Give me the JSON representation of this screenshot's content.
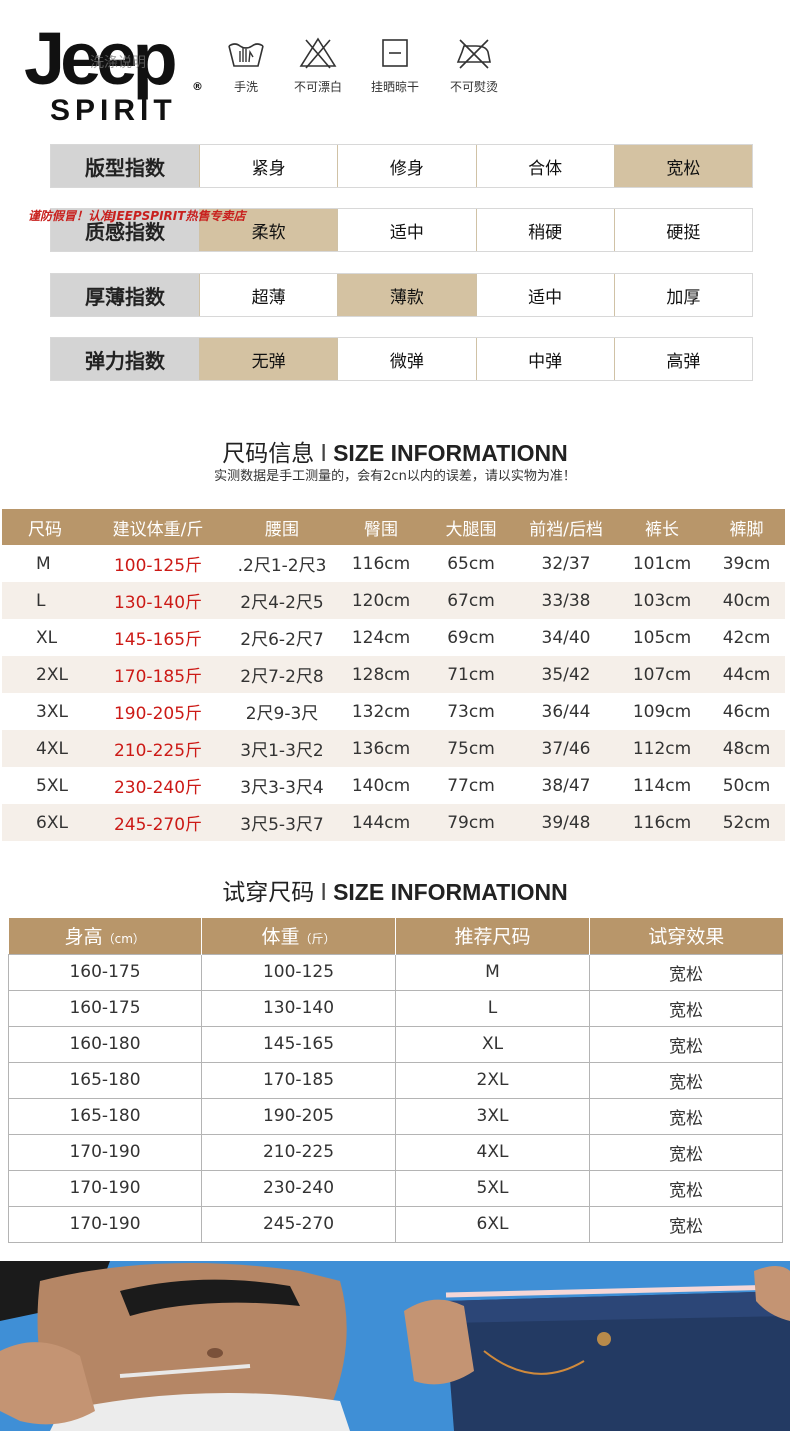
{
  "brand": {
    "name": "Jeep",
    "registered": "®",
    "sub": "SPIRIT",
    "care_title": "洗涤说明"
  },
  "care_icons": [
    {
      "icon": "hand-wash-icon",
      "label": "手洗"
    },
    {
      "icon": "no-bleach-icon",
      "label": "不可漂白"
    },
    {
      "icon": "hang-dry-icon",
      "label": "挂晒晾干"
    },
    {
      "icon": "no-iron-icon",
      "label": "不可熨烫"
    }
  ],
  "warning": "谨防假冒！认准JEEPSPIRIT热售专卖店",
  "indices": [
    {
      "title": "版型指数",
      "options": [
        "紧身",
        "修身",
        "合体",
        "宽松"
      ],
      "active": 3
    },
    {
      "title": "质感指数",
      "options": [
        "柔软",
        "适中",
        "稍硬",
        "硬挺"
      ],
      "active": 0
    },
    {
      "title": "厚薄指数",
      "options": [
        "超薄",
        "薄款",
        "适中",
        "加厚"
      ],
      "active": 1
    },
    {
      "title": "弹力指数",
      "options": [
        "无弹",
        "微弹",
        "中弹",
        "高弹"
      ],
      "active": 0
    }
  ],
  "size_section": {
    "title_cn": "尺码信息",
    "sep": "I",
    "title_en": "SIZE INFORMATIONN",
    "subtitle": "实测数据是手工测量的，会有2cn以内的误差，请以实物为准！"
  },
  "size_table": {
    "headers": [
      "尺码",
      "建议体重/斤",
      "腰围",
      "臀围",
      "大腿围",
      "前裆/后档",
      "裤长",
      "裤脚"
    ],
    "rows": [
      [
        "M",
        "100-125斤",
        ".2尺1-2尺3",
        "116cm",
        "65cm",
        "32/37",
        "101cm",
        "39cm"
      ],
      [
        "L",
        "130-140斤",
        "2尺4-2尺5",
        "120cm",
        "67cm",
        "33/38",
        "103cm",
        "40cm"
      ],
      [
        "XL",
        "145-165斤",
        "2尺6-2尺7",
        "124cm",
        "69cm",
        "34/40",
        "105cm",
        "42cm"
      ],
      [
        "2XL",
        "170-185斤",
        "2尺7-2尺8",
        "128cm",
        "71cm",
        "35/42",
        "107cm",
        "44cm"
      ],
      [
        "3XL",
        "190-205斤",
        "2尺9-3尺",
        "132cm",
        "73cm",
        "36/44",
        "109cm",
        "46cm"
      ],
      [
        "4XL",
        "210-225斤",
        "3尺1-3尺2",
        "136cm",
        "75cm",
        "37/46",
        "112cm",
        "48cm"
      ],
      [
        "5XL",
        "230-240斤",
        "3尺3-3尺4",
        "140cm",
        "77cm",
        "38/47",
        "114cm",
        "50cm"
      ],
      [
        "6XL",
        "245-270斤",
        "3尺5-3尺7",
        "144cm",
        "79cm",
        "39/48",
        "116cm",
        "52cm"
      ]
    ]
  },
  "fit_section": {
    "title_cn": "试穿尺码",
    "sep": "I",
    "title_en": "SIZE INFORMATIONN"
  },
  "fit_table": {
    "headers": [
      {
        "label": "身高",
        "unit": "（cm）"
      },
      {
        "label": "体重",
        "unit": "（斤）"
      },
      {
        "label": "推荐尺码",
        "unit": ""
      },
      {
        "label": "试穿效果",
        "unit": ""
      }
    ],
    "rows": [
      [
        "160-175",
        "100-125",
        "M",
        "宽松"
      ],
      [
        "160-175",
        "130-140",
        "L",
        "宽松"
      ],
      [
        "160-180",
        "145-165",
        "XL",
        "宽松"
      ],
      [
        "165-180",
        "170-185",
        "2XL",
        "宽松"
      ],
      [
        "165-180",
        "190-205",
        "3XL",
        "宽松"
      ],
      [
        "170-190",
        "210-225",
        "4XL",
        "宽松"
      ],
      [
        "170-190",
        "230-240",
        "5XL",
        "宽松"
      ],
      [
        "170-190",
        "245-270",
        "6XL",
        "宽松"
      ]
    ]
  },
  "colors": {
    "accent": "#b8966a",
    "active_cell": "#d4c2a2",
    "header_gray": "#d4d4d4",
    "price_red": "#cc1a16",
    "photo_blue": "#3f8fd6"
  }
}
